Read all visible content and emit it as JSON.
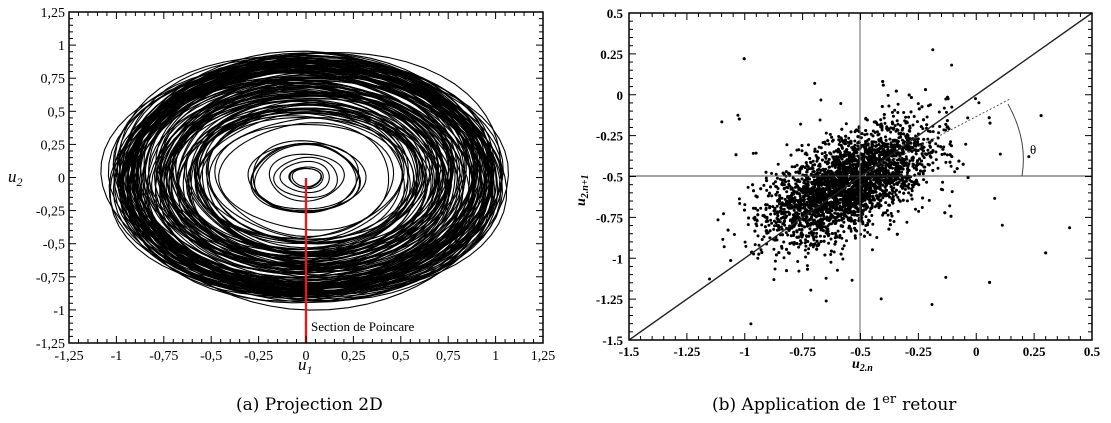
{
  "chart_data": [
    {
      "type": "line",
      "id": "a",
      "caption": "(a) Projection 2D",
      "xlabel": "u",
      "xlabel_sub": "1",
      "ylabel": "u",
      "ylabel_sub": "2",
      "xlim": [
        -1.25,
        1.25
      ],
      "ylim": [
        -1.25,
        1.25
      ],
      "xticks": [
        -1.25,
        -1,
        -0.75,
        -0.5,
        -0.25,
        0,
        0.25,
        0.5,
        0.75,
        1,
        1.25
      ],
      "yticks": [
        -1.25,
        -1,
        -0.75,
        -0.5,
        -0.25,
        0,
        0.25,
        0.5,
        0.75,
        1,
        1.25
      ],
      "xtick_labels": [
        "-1,25",
        "-1",
        "-0,75",
        "-0,5",
        "-0,25",
        "0",
        "0,25",
        "0,5",
        "0,75",
        "1",
        "1,25"
      ],
      "ytick_labels": [
        "-1,25",
        "-1",
        "-0,75",
        "-0,5",
        "-0,25",
        "0",
        "0,25",
        "0,5",
        "0,75",
        "1",
        "1,25"
      ],
      "trajectory": {
        "center": [
          0,
          0
        ],
        "outer_radius_x": 1.0,
        "outer_radius_y": 0.9,
        "inner_radius": 0.15
      },
      "section_line": {
        "x": 0,
        "y_from": -1.25,
        "y_to": 0,
        "color": "#e31a1c"
      },
      "annotation": "Section de Poincare",
      "grid": false
    },
    {
      "type": "scatter",
      "id": "b",
      "caption_pre": "(b) Application de 1",
      "caption_sup": "er",
      "caption_post": "retour",
      "xlabel": "u",
      "xlabel_sub": "2.n",
      "ylabel": "u",
      "ylabel_sub": "2.n+1",
      "xlim": [
        -1.5,
        0.5
      ],
      "ylim": [
        -1.5,
        0.5
      ],
      "xticks": [
        -1.5,
        -1.25,
        -1,
        -0.75,
        -0.5,
        -0.25,
        0,
        0.25,
        0.5
      ],
      "yticks": [
        -1.5,
        -1.25,
        -1,
        -0.75,
        -0.5,
        -0.25,
        0,
        0.25,
        0.5
      ],
      "xtick_labels": [
        "-1.5",
        "-1.25",
        "-1",
        "-0.75",
        "-0.5",
        "-0.25",
        "0",
        "0.25",
        "0.5"
      ],
      "ytick_labels": [
        "-1.5",
        "-1.25",
        "-1",
        "-0.75",
        "-0.5",
        "-0.25",
        "0",
        "0.25",
        "0.5"
      ],
      "point_cloud": {
        "center": [
          -0.55,
          -0.55
        ],
        "count": 4000
      },
      "diagonal": {
        "from": [
          -1.5,
          -1.5
        ],
        "to": [
          0.5,
          0.5
        ]
      },
      "crosshair": {
        "x": -0.5,
        "y": -0.5
      },
      "angle_label": "θ",
      "grid": false
    }
  ]
}
